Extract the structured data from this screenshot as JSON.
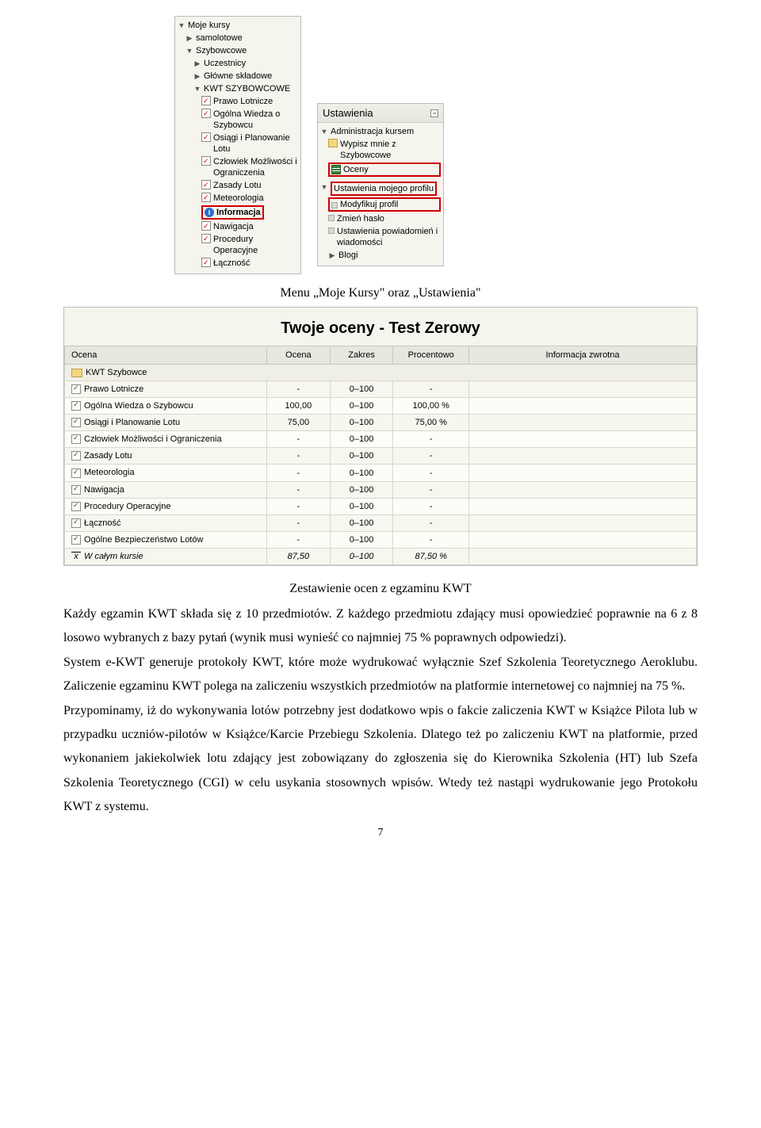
{
  "panels": {
    "moje_kursy": {
      "title": "Moje kursy",
      "items": {
        "samolotowe": "samolotowe",
        "szybowcowe": "Szybowcowe",
        "uczestnicy": "Uczestnicy",
        "glowne": "Główne składowe",
        "kwt": "KWT SZYBOWCOWE",
        "prawo": "Prawo Lotnicze",
        "wiedza": "Ogólna Wiedza o Szybowcu",
        "osiagi": "Osiągi i Planowanie Lotu",
        "czlowiek": "Człowiek Możliwości i Ograniczenia",
        "zasady": "Zasady Lotu",
        "meteo": "Meteorologia",
        "info": "Informacja",
        "nawigacja": "Nawigacja",
        "procedury": "Procedury Operacyjne",
        "lacznosc": "Łączność"
      }
    },
    "ustawienia": {
      "title": "Ustawienia",
      "admin": "Administracja kursem",
      "wypisz": "Wypisz mnie z Szybowcowe",
      "oceny": "Oceny",
      "profil": "Ustawienia mojego profilu",
      "modyfikuj": "Modyfikuj profil",
      "zmien": "Zmień hasło",
      "powiad": "Ustawienia powiadomień i wiadomości",
      "blogi": "Blogi"
    }
  },
  "caption1": "Menu „Moje Kursy\" oraz „Ustawienia\"",
  "caption2": "Zestawienie ocen z egzaminu KWT",
  "grades": {
    "title": "Twoje oceny - Test Zerowy",
    "columns": [
      "Ocena",
      "Ocena",
      "Zakres",
      "Procentowo",
      "Informacja zwrotna"
    ],
    "rows": [
      {
        "type": "folder",
        "label": "KWT Szybowce"
      },
      {
        "type": "item",
        "label": "Prawo Lotnicze",
        "v1": "-",
        "v2": "0–100",
        "v3": "-"
      },
      {
        "type": "item",
        "label": "Ogólna Wiedza o Szybowcu",
        "v1": "100,00",
        "v2": "0–100",
        "v3": "100,00 %"
      },
      {
        "type": "item",
        "label": "Osiągi i Planowanie Lotu",
        "v1": "75,00",
        "v2": "0–100",
        "v3": "75,00 %"
      },
      {
        "type": "item",
        "label": "Człowiek Możliwości i Ograniczenia",
        "v1": "-",
        "v2": "0–100",
        "v3": "-"
      },
      {
        "type": "item",
        "label": "Zasady Lotu",
        "v1": "-",
        "v2": "0–100",
        "v3": "-"
      },
      {
        "type": "item",
        "label": "Meteorologia",
        "v1": "-",
        "v2": "0–100",
        "v3": "-"
      },
      {
        "type": "item",
        "label": "Nawigacja",
        "v1": "-",
        "v2": "0–100",
        "v3": "-"
      },
      {
        "type": "item",
        "label": "Procedury Operacyjne",
        "v1": "-",
        "v2": "0–100",
        "v3": "-"
      },
      {
        "type": "item",
        "label": "Łączność",
        "v1": "-",
        "v2": "0–100",
        "v3": "-"
      },
      {
        "type": "item",
        "label": "Ogólne Bezpieczeństwo Lotów",
        "v1": "-",
        "v2": "0–100",
        "v3": "-"
      },
      {
        "type": "avg",
        "label": "W całym kursie",
        "v1": "87,50",
        "v2": "0–100",
        "v3": "87,50 %"
      }
    ]
  },
  "paragraphs": {
    "p1": "Każdy egzamin KWT składa się z 10 przedmiotów. Z każdego przedmiotu zdający musi opowiedzieć poprawnie na 6 z 8 losowo wybranych z bazy pytań (wynik musi wynieść co najmniej 75 % poprawnych odpowiedzi).",
    "p2": "System e-KWT generuje protokoły KWT, które może wydrukować wyłącznie Szef Szkolenia Teoretycznego Aeroklubu. Zaliczenie egzaminu KWT polega na zaliczeniu wszystkich przedmiotów na platformie internetowej co najmniej na 75 %.",
    "p3": "Przypominamy, iż do wykonywania lotów potrzebny jest dodatkowo wpis o fakcie zaliczenia KWT w Książce Pilota lub w przypadku uczniów-pilotów w Książce/Karcie Przebiegu Szkolenia. Dlatego też po zaliczeniu KWT na platformie, przed wykonaniem jakiekolwiek lotu zdający jest zobowiązany do zgłoszenia się do Kierownika Szkolenia (HT) lub Szefa Szkolenia Teoretycznego (CGI) w celu usykania stosownych wpisów. Wtedy też nastąpi wydrukowanie jego Protokołu KWT z systemu."
  },
  "page": "7"
}
